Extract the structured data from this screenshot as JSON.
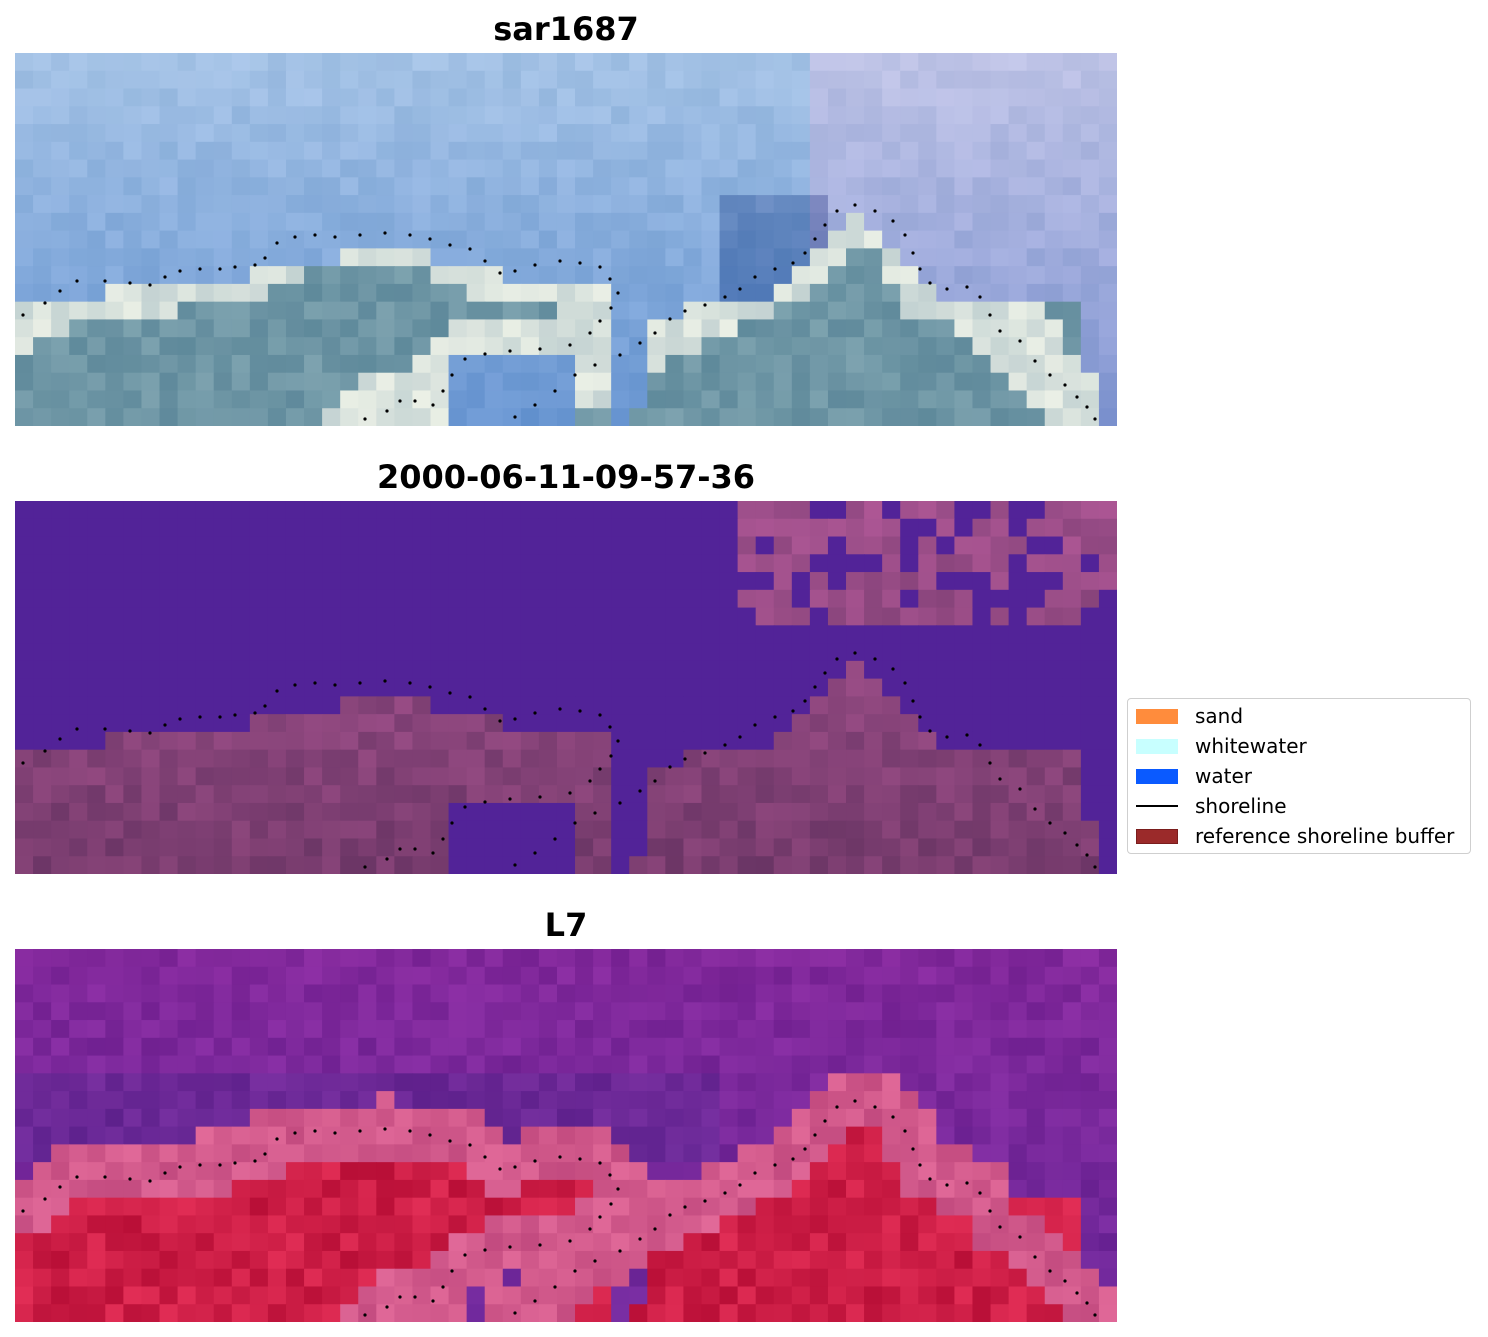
{
  "panels": [
    {
      "title": "sar1687",
      "style": "rgb"
    },
    {
      "title": "2000-06-11-09-57-36",
      "style": "classified"
    },
    {
      "title": "L7",
      "style": "index"
    }
  ],
  "legend": {
    "items": [
      {
        "label": "sand",
        "kind": "patch",
        "color": "#ff8c3c"
      },
      {
        "label": "whitewater",
        "kind": "patch",
        "color": "#c8ffff"
      },
      {
        "label": "water",
        "kind": "patch",
        "color": "#0a5aff"
      },
      {
        "label": "shoreline",
        "kind": "line",
        "color": "#000000"
      },
      {
        "label": "reference shoreline buffer",
        "kind": "patch",
        "color": "#9b2a2a",
        "edge": "#7a1d1d"
      }
    ]
  }
}
